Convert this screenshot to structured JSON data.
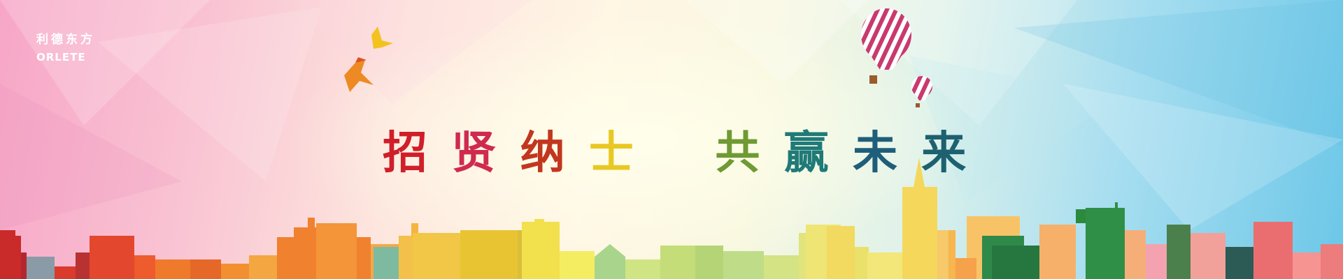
{
  "logo": {
    "chinese": "利德东方",
    "english": "ORLETE"
  },
  "headline": {
    "chars": [
      "招",
      "贤",
      "纳",
      "士",
      "共",
      "赢",
      "未",
      "来"
    ]
  },
  "colors": {
    "pink": "#f7a6c7",
    "cream": "#fff6e4",
    "sky": "#6cc7e8",
    "red": "#cf1f2a",
    "yellow": "#e8c823",
    "green": "#2f8a4a",
    "teal": "#1f7a78"
  },
  "icons": [
    "bird-icon",
    "hot-air-balloon-icon",
    "city-skyline-illustration"
  ]
}
